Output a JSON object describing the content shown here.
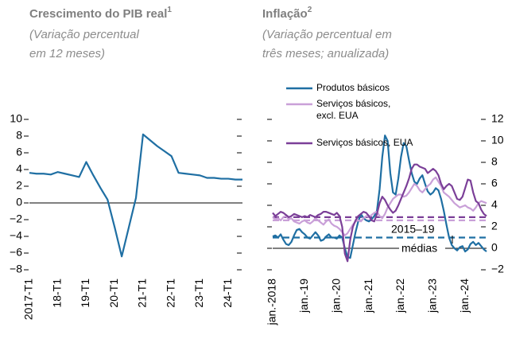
{
  "chart_data": [
    {
      "type": "line",
      "title": "Crescimento do PIB real",
      "title_note": "1",
      "subtitle": [
        "(Variação percentual",
        "em 12 meses)"
      ],
      "categories": [
        "2017-T1",
        null,
        null,
        null,
        "18-T1",
        null,
        null,
        null,
        "19-T1",
        null,
        null,
        null,
        "20-T1",
        null,
        null,
        null,
        "21-T1",
        null,
        null,
        null,
        "22-T1",
        null,
        null,
        null,
        "23-T1",
        null,
        null,
        null,
        "24-T1",
        null,
        null
      ],
      "series": [
        {
          "color": "#1f6fa3",
          "values": [
            3.6,
            3.5,
            3.5,
            3.4,
            3.7,
            3.5,
            3.3,
            3.1,
            4.9,
            3.3,
            1.8,
            0.4,
            -2.9,
            -6.4,
            -2.9,
            0.6,
            8.2,
            7.5,
            6.8,
            6.2,
            5.6,
            3.6,
            3.5,
            3.4,
            3.3,
            3.0,
            3.0,
            2.9,
            2.9,
            2.8,
            2.8
          ]
        }
      ],
      "ylim": [
        -8,
        10
      ],
      "yticks": [
        {
          "value": -8,
          "label": "−8"
        },
        {
          "value": -6,
          "label": "−6"
        },
        {
          "value": -4,
          "label": "−4"
        },
        {
          "value": -2,
          "label": "−2"
        },
        0,
        2,
        4,
        6,
        8,
        10
      ],
      "ytick_side": "left",
      "zero_line": true
    },
    {
      "type": "line",
      "title": "Inflação",
      "title_note": "2",
      "subtitle": [
        "(Variação percentual em",
        "três meses; anualizada)"
      ],
      "categories": [
        "jan.-2018",
        null,
        null,
        null,
        null,
        null,
        null,
        null,
        null,
        null,
        null,
        null,
        "jan.-19",
        null,
        null,
        null,
        null,
        null,
        null,
        null,
        null,
        null,
        null,
        null,
        "jan.-20",
        null,
        null,
        null,
        null,
        null,
        null,
        null,
        null,
        null,
        null,
        null,
        "jan.-21",
        null,
        null,
        null,
        null,
        null,
        null,
        null,
        null,
        null,
        null,
        null,
        "jan.-22",
        null,
        null,
        null,
        null,
        null,
        null,
        null,
        null,
        null,
        null,
        null,
        "jan.-23",
        null,
        null,
        null,
        null,
        null,
        null,
        null,
        null,
        null,
        null,
        null,
        "jan.-24",
        null,
        null,
        null,
        null,
        null,
        null,
        null,
        null
      ],
      "series": [
        {
          "name": "Produtos básicos",
          "color": "#1f6fa3",
          "average": 1.0,
          "values": [
            1.1,
            1.2,
            1.0,
            1.3,
            0.8,
            0.4,
            0.3,
            0.6,
            1.2,
            1.7,
            1.8,
            1.5,
            1.3,
            1.0,
            0.9,
            1.2,
            1.5,
            1.2,
            0.7,
            0.8,
            1.1,
            1.3,
            1.0,
            1.0,
            0.9,
            1.2,
            1.0,
            0.0,
            -0.8,
            -0.9,
            0.3,
            1.5,
            2.5,
            3.2,
            2.8,
            2.6,
            2.5,
            2.7,
            3.0,
            3.5,
            5.5,
            8.5,
            10.5,
            10.0,
            7.0,
            5.2,
            5.0,
            6.5,
            8.5,
            9.8,
            9.5,
            8.2,
            7.0,
            6.2,
            6.0,
            6.5,
            6.8,
            6.0,
            5.3,
            5.0,
            5.2,
            5.6,
            5.4,
            4.6,
            3.5,
            2.2,
            1.0,
            0.3,
            0.0,
            -0.2,
            0.1,
            0.2,
            -0.3,
            -0.1,
            0.4,
            0.6,
            0.3,
            0.5,
            0.2,
            -0.1,
            -0.3
          ]
        },
        {
          "name": "Serviços básicos, excl. EUA",
          "color": "#c9a0d8",
          "average": 2.6,
          "values": [
            2.9,
            2.7,
            2.8,
            2.6,
            2.9,
            3.0,
            2.7,
            2.8,
            2.5,
            2.4,
            2.3,
            2.5,
            2.6,
            2.4,
            2.3,
            2.5,
            2.8,
            2.6,
            2.4,
            2.2,
            2.5,
            2.7,
            2.3,
            2.1,
            2.0,
            1.8,
            1.5,
            1.2,
            1.4,
            1.8,
            2.2,
            2.5,
            2.6,
            2.5,
            2.8,
            3.0,
            2.9,
            3.1,
            3.3,
            3.4,
            3.0,
            2.8,
            3.2,
            3.8,
            4.2,
            4.6,
            4.8,
            5.0,
            5.0,
            4.8,
            4.9,
            5.2,
            5.6,
            6.0,
            5.8,
            5.4,
            5.2,
            5.5,
            5.8,
            6.0,
            6.4,
            6.6,
            6.2,
            5.8,
            5.2,
            5.0,
            4.8,
            4.5,
            4.2,
            4.0,
            3.8,
            3.9,
            4.0,
            3.8,
            3.7,
            3.5,
            3.8,
            4.2,
            4.4,
            4.3,
            4.2
          ]
        },
        {
          "name": "Serviços básicos, EUA",
          "color": "#7b3f98",
          "average": 2.9,
          "values": [
            3.3,
            3.0,
            3.2,
            3.4,
            3.3,
            3.1,
            2.9,
            3.0,
            3.2,
            3.1,
            3.0,
            2.9,
            3.0,
            2.9,
            3.1,
            3.0,
            2.9,
            3.1,
            3.2,
            3.4,
            3.4,
            3.3,
            3.2,
            3.1,
            3.3,
            3.0,
            2.0,
            -0.5,
            -1.2,
            0.8,
            2.0,
            2.6,
            3.0,
            3.2,
            3.4,
            3.3,
            3.0,
            2.6,
            2.5,
            3.2,
            4.2,
            4.8,
            4.5,
            4.0,
            3.6,
            3.3,
            3.5,
            4.0,
            4.6,
            5.2,
            5.8,
            6.5,
            7.4,
            7.8,
            7.8,
            7.6,
            7.5,
            7.4,
            7.0,
            7.2,
            7.4,
            7.2,
            6.8,
            6.0,
            5.5,
            5.8,
            6.0,
            5.8,
            5.2,
            4.6,
            4.5,
            4.8,
            5.6,
            6.4,
            6.3,
            5.2,
            4.4,
            4.2,
            3.6,
            3.2,
            3.0
          ]
        }
      ],
      "annotations": [
        "2015–19",
        "médias"
      ],
      "ylim": [
        -2,
        12
      ],
      "yticks": [
        {
          "value": -2,
          "label": "−2"
        },
        0,
        2,
        4,
        6,
        8,
        10,
        12
      ],
      "ytick_side": "right",
      "zero_line": true,
      "average_style": "dashed"
    }
  ]
}
